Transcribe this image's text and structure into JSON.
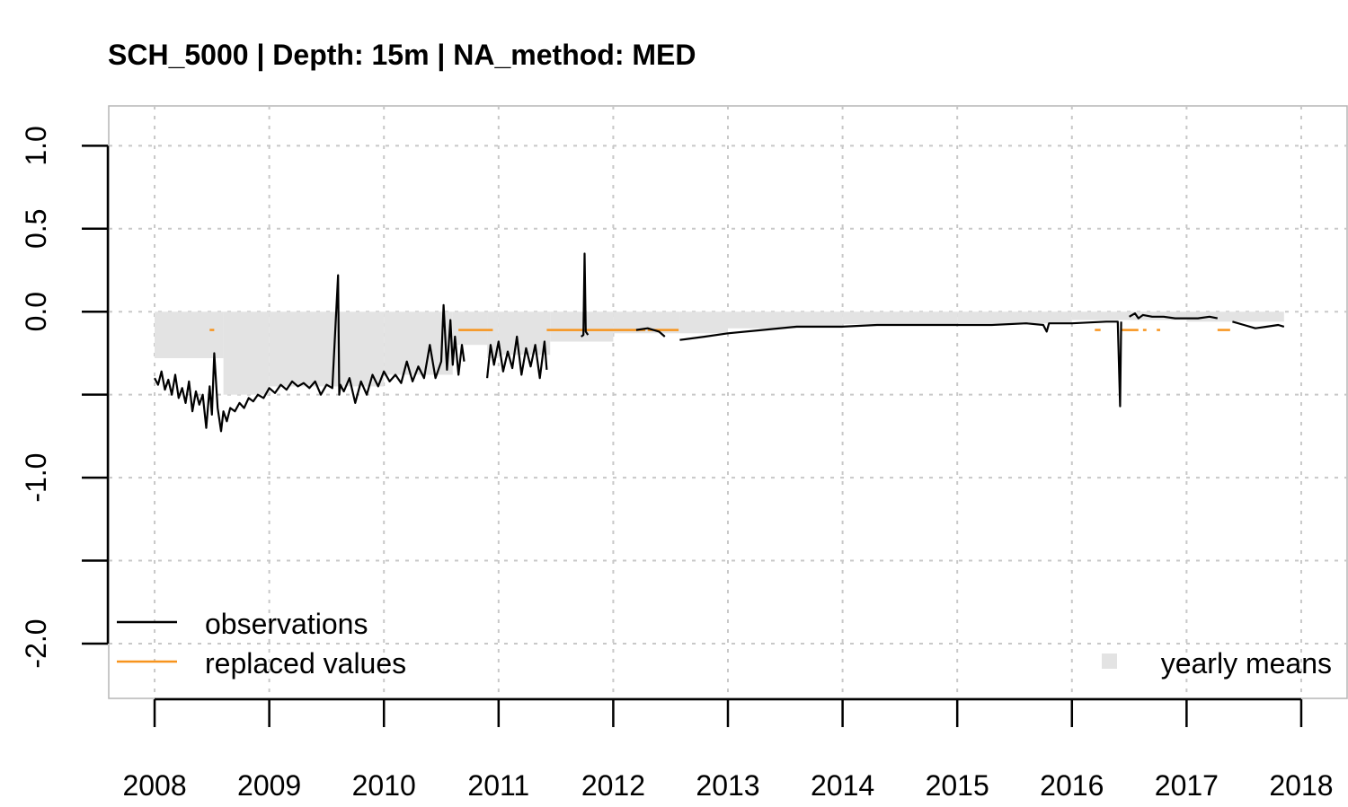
{
  "chart_data": {
    "type": "line",
    "title": "SCH_5000 | Depth: 15m | NA_method: MED",
    "xlabel": "",
    "ylabel": "",
    "xlim": [
      2007.6,
      2018.4
    ],
    "ylim": [
      -2.33,
      1.24
    ],
    "x_ticks": [
      2008,
      2009,
      2010,
      2011,
      2012,
      2013,
      2014,
      2015,
      2016,
      2017,
      2018
    ],
    "x_tick_labels": [
      "2008",
      "2009",
      "2010",
      "2011",
      "2012",
      "2013",
      "2014",
      "2015",
      "2016",
      "2017",
      "2018"
    ],
    "y_ticks": [
      1.0,
      0.5,
      0.0,
      -0.5,
      -1.0,
      -1.5,
      -2.0
    ],
    "y_tick_labels": [
      "1.0",
      "0.5",
      "0.0",
      "",
      "-1.0",
      "",
      "-2.0"
    ],
    "grid": true,
    "legend": {
      "position": "bottom-left",
      "entries": [
        {
          "label": "observations",
          "color": "#000000"
        },
        {
          "label": "replaced values",
          "color": "#f7941d"
        }
      ],
      "extra_position": "bottom-right",
      "extra_label": "yearly means",
      "extra_color": "#e3e3e3"
    },
    "yearly_means": [
      {
        "x0": 2008.0,
        "x1": 2008.6,
        "y": -0.28
      },
      {
        "x0": 2008.6,
        "x1": 2009.0,
        "y": -0.5
      },
      {
        "x0": 2009.0,
        "x1": 2010.0,
        "y": -0.45
      },
      {
        "x0": 2010.0,
        "x1": 2010.6,
        "y": -0.38
      },
      {
        "x0": 2010.6,
        "x1": 2010.9,
        "y": -0.2
      },
      {
        "x0": 2010.9,
        "x1": 2011.0,
        "y": -0.28
      },
      {
        "x0": 2011.0,
        "x1": 2011.45,
        "y": -0.26
      },
      {
        "x0": 2011.45,
        "x1": 2012.0,
        "y": -0.18
      },
      {
        "x0": 2012.0,
        "x1": 2012.58,
        "y": -0.13
      },
      {
        "x0": 2012.58,
        "x1": 2013.0,
        "y": -0.13
      },
      {
        "x0": 2013.0,
        "x1": 2014.0,
        "y": -0.1
      },
      {
        "x0": 2014.0,
        "x1": 2015.0,
        "y": -0.075
      },
      {
        "x0": 2015.0,
        "x1": 2016.0,
        "y": -0.07
      },
      {
        "x0": 2016.0,
        "x1": 2017.0,
        "y": -0.05
      },
      {
        "x0": 2017.0,
        "x1": 2017.85,
        "y": -0.06
      }
    ],
    "observations": [
      {
        "x": [
          2008.0,
          2008.03,
          2008.06,
          2008.09,
          2008.12,
          2008.15,
          2008.18,
          2008.21,
          2008.24,
          2008.27,
          2008.3,
          2008.33,
          2008.36,
          2008.39,
          2008.42,
          2008.45,
          2008.48,
          2008.5,
          2008.52,
          2008.55,
          2008.58,
          2008.6,
          2008.63,
          2008.66,
          2008.7,
          2008.74,
          2008.78,
          2008.82,
          2008.86,
          2008.9,
          2008.95,
          2009.0,
          2009.05,
          2009.1,
          2009.15,
          2009.2,
          2009.25,
          2009.3,
          2009.35,
          2009.4,
          2009.45,
          2009.5,
          2009.55,
          2009.6,
          2009.61,
          2009.62,
          2009.65,
          2009.7,
          2009.75,
          2009.8,
          2009.85,
          2009.9,
          2009.95,
          2010.0,
          2010.05,
          2010.1,
          2010.15,
          2010.2,
          2010.25,
          2010.3,
          2010.35,
          2010.4,
          2010.45,
          2010.5,
          2010.52,
          2010.55,
          2010.58,
          2010.6,
          2010.62,
          2010.65,
          2010.68,
          2010.7
        ],
        "y": [
          -0.4,
          -0.44,
          -0.36,
          -0.47,
          -0.41,
          -0.5,
          -0.38,
          -0.52,
          -0.46,
          -0.55,
          -0.42,
          -0.6,
          -0.48,
          -0.56,
          -0.5,
          -0.7,
          -0.45,
          -0.62,
          -0.25,
          -0.58,
          -0.72,
          -0.6,
          -0.66,
          -0.58,
          -0.6,
          -0.55,
          -0.58,
          -0.52,
          -0.54,
          -0.5,
          -0.52,
          -0.46,
          -0.49,
          -0.44,
          -0.47,
          -0.42,
          -0.45,
          -0.43,
          -0.46,
          -0.42,
          -0.5,
          -0.44,
          -0.46,
          0.22,
          -0.5,
          -0.44,
          -0.48,
          -0.4,
          -0.55,
          -0.42,
          -0.5,
          -0.38,
          -0.45,
          -0.36,
          -0.42,
          -0.38,
          -0.43,
          -0.3,
          -0.42,
          -0.33,
          -0.4,
          -0.2,
          -0.4,
          -0.3,
          0.04,
          -0.35,
          -0.05,
          -0.32,
          -0.15,
          -0.38,
          -0.2,
          -0.3
        ]
      },
      {
        "x": [
          2010.9,
          2010.93,
          2010.96,
          2011.0,
          2011.04,
          2011.08,
          2011.12,
          2011.16,
          2011.2,
          2011.24,
          2011.28,
          2011.32,
          2011.36,
          2011.4,
          2011.42
        ],
        "y": [
          -0.4,
          -0.2,
          -0.32,
          -0.18,
          -0.36,
          -0.24,
          -0.34,
          -0.15,
          -0.38,
          -0.22,
          -0.33,
          -0.2,
          -0.4,
          -0.18,
          -0.35
        ]
      },
      {
        "x": [
          2011.72,
          2011.74,
          2011.75,
          2011.76,
          2011.78
        ],
        "y": [
          -0.15,
          -0.14,
          0.35,
          -0.12,
          -0.14
        ]
      },
      {
        "x": [
          2012.2,
          2012.3,
          2012.4,
          2012.45
        ],
        "y": [
          -0.11,
          -0.1,
          -0.12,
          -0.15
        ]
      },
      {
        "x": [
          2012.58,
          2012.8,
          2013.0,
          2013.3,
          2013.6,
          2014.0,
          2014.3,
          2014.6,
          2015.0,
          2015.3,
          2015.6,
          2015.75,
          2015.78,
          2015.8,
          2016.0,
          2016.3,
          2016.4,
          2016.42,
          2016.43
        ],
        "y": [
          -0.17,
          -0.15,
          -0.13,
          -0.11,
          -0.09,
          -0.09,
          -0.08,
          -0.08,
          -0.08,
          -0.08,
          -0.07,
          -0.08,
          -0.12,
          -0.07,
          -0.07,
          -0.06,
          -0.06,
          -0.57,
          -0.06
        ]
      },
      {
        "x": [
          2016.5,
          2016.55,
          2016.58,
          2016.62,
          2016.7,
          2016.8,
          2016.9,
          2017.0,
          2017.1,
          2017.2,
          2017.27
        ],
        "y": [
          -0.03,
          -0.01,
          -0.04,
          -0.02,
          -0.03,
          -0.03,
          -0.04,
          -0.04,
          -0.04,
          -0.03,
          -0.04
        ]
      },
      {
        "x": [
          2017.4,
          2017.5,
          2017.6,
          2017.7,
          2017.8,
          2017.85
        ],
        "y": [
          -0.06,
          -0.08,
          -0.1,
          -0.09,
          -0.08,
          -0.09
        ]
      }
    ],
    "replaced_values": [
      {
        "x0": 2008.48,
        "x1": 2008.52,
        "y": -0.11
      },
      {
        "x0": 2010.65,
        "x1": 2010.95,
        "y": -0.11
      },
      {
        "x0": 2011.42,
        "x1": 2012.28,
        "y": -0.11
      },
      {
        "x0": 2012.3,
        "x1": 2012.57,
        "y": -0.11
      },
      {
        "x0": 2016.2,
        "x1": 2016.25,
        "y": -0.11
      },
      {
        "x0": 2016.43,
        "x1": 2016.58,
        "y": -0.11
      },
      {
        "x0": 2016.62,
        "x1": 2016.65,
        "y": -0.11
      },
      {
        "x0": 2016.74,
        "x1": 2016.77,
        "y": -0.11
      },
      {
        "x0": 2017.27,
        "x1": 2017.38,
        "y": -0.11
      }
    ]
  }
}
